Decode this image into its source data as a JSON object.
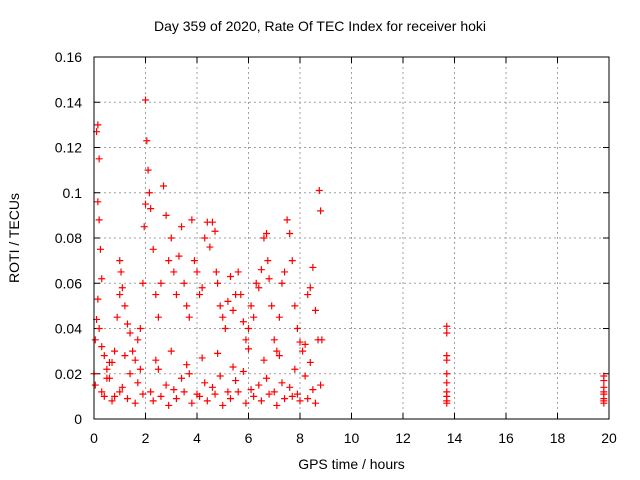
{
  "chart_data": {
    "type": "scatter",
    "title": "Day 359 of 2020, Rate Of TEC Index for receiver hoki",
    "xlabel": "GPS time / hours",
    "ylabel": "ROTI / TECUs",
    "xlim": [
      0,
      20
    ],
    "ylim": [
      0,
      0.16
    ],
    "xticks": [
      0,
      2,
      4,
      6,
      8,
      10,
      12,
      14,
      16,
      18,
      20
    ],
    "yticks": [
      0,
      0.02,
      0.04,
      0.06,
      0.08,
      0.1,
      0.12,
      0.14,
      0.16
    ],
    "ytick_labels": [
      "0",
      "0.02",
      "0.04",
      "0.06",
      "0.08",
      "0.1",
      "0.12",
      "0.14",
      "0.16"
    ],
    "grid": true,
    "marker": "+",
    "colors": {
      "series": "#ff0000",
      "grid": "#a0a0a0"
    },
    "series": [
      {
        "name": "",
        "x": [
          0.0,
          0.05,
          0.1,
          0.15,
          0.2,
          0.1,
          0.15,
          0.2,
          0.25,
          0.3,
          0.15,
          0.2,
          0.3,
          0.4,
          0.5,
          0.6,
          0.7,
          0.8,
          0.9,
          1.0,
          1.0,
          1.05,
          1.1,
          1.2,
          1.3,
          1.4,
          1.5,
          1.6,
          1.7,
          1.8,
          1.9,
          1.95,
          2.0,
          2.0,
          2.05,
          2.1,
          2.15,
          2.2,
          2.3,
          2.4,
          2.5,
          2.6,
          2.7,
          2.8,
          2.9,
          3.0,
          3.1,
          3.2,
          3.3,
          3.4,
          3.5,
          3.6,
          3.7,
          3.8,
          3.9,
          4.0,
          4.1,
          4.2,
          4.3,
          4.4,
          4.5,
          4.6,
          4.7,
          4.75,
          4.8,
          4.9,
          5.0,
          5.1,
          5.2,
          5.3,
          5.4,
          5.5,
          5.6,
          5.7,
          5.8,
          5.9,
          6.0,
          6.1,
          6.2,
          6.3,
          6.4,
          6.5,
          6.6,
          6.7,
          6.75,
          6.8,
          6.9,
          7.0,
          7.1,
          7.2,
          7.3,
          7.4,
          7.5,
          7.6,
          7.7,
          7.8,
          7.9,
          8.0,
          8.1,
          8.2,
          8.3,
          8.4,
          8.5,
          8.6,
          8.7,
          8.75,
          8.8,
          8.85,
          0.05,
          0.3,
          0.5,
          0.8,
          1.1,
          1.4,
          1.7,
          2.2,
          2.5,
          2.8,
          3.1,
          3.4,
          3.7,
          4.0,
          4.3,
          4.6,
          4.9,
          5.2,
          5.5,
          5.8,
          6.1,
          6.4,
          6.7,
          7.0,
          7.3,
          7.6,
          7.9,
          8.2,
          8.5,
          8.8,
          0.4,
          0.7,
          1.0,
          1.3,
          1.6,
          1.9,
          2.3,
          2.6,
          2.9,
          3.2,
          3.5,
          3.8,
          4.1,
          4.4,
          4.7,
          5.0,
          5.3,
          5.6,
          5.9,
          6.2,
          6.5,
          6.8,
          7.1,
          7.4,
          7.7,
          8.0,
          8.3,
          8.6,
          0.6,
          1.2,
          1.8,
          2.4,
          3.0,
          3.6,
          4.2,
          4.8,
          5.4,
          6.0,
          6.6,
          7.2,
          7.8,
          8.4,
          13.7,
          13.7,
          13.7,
          13.7,
          13.7,
          13.7,
          13.7,
          13.7,
          13.7,
          13.7,
          19.8,
          19.8,
          19.8,
          19.8,
          19.8,
          19.8,
          19.8,
          19.8
        ],
        "y": [
          0.02,
          0.035,
          0.044,
          0.13,
          0.115,
          0.127,
          0.096,
          0.088,
          0.075,
          0.062,
          0.053,
          0.04,
          0.032,
          0.028,
          0.022,
          0.018,
          0.025,
          0.03,
          0.045,
          0.055,
          0.07,
          0.065,
          0.058,
          0.05,
          0.042,
          0.038,
          0.03,
          0.026,
          0.035,
          0.04,
          0.06,
          0.085,
          0.095,
          0.141,
          0.123,
          0.11,
          0.1,
          0.093,
          0.075,
          0.055,
          0.045,
          0.06,
          0.103,
          0.09,
          0.07,
          0.08,
          0.065,
          0.055,
          0.072,
          0.085,
          0.06,
          0.05,
          0.045,
          0.088,
          0.07,
          0.065,
          0.055,
          0.058,
          0.08,
          0.087,
          0.076,
          0.087,
          0.083,
          0.065,
          0.06,
          0.05,
          0.045,
          0.04,
          0.052,
          0.063,
          0.048,
          0.055,
          0.065,
          0.055,
          0.043,
          0.035,
          0.04,
          0.05,
          0.045,
          0.06,
          0.058,
          0.066,
          0.08,
          0.082,
          0.07,
          0.062,
          0.05,
          0.035,
          0.03,
          0.045,
          0.06,
          0.065,
          0.088,
          0.082,
          0.07,
          0.05,
          0.04,
          0.034,
          0.03,
          0.033,
          0.055,
          0.058,
          0.067,
          0.048,
          0.035,
          0.101,
          0.092,
          0.035,
          0.015,
          0.012,
          0.018,
          0.01,
          0.014,
          0.02,
          0.016,
          0.012,
          0.022,
          0.015,
          0.013,
          0.018,
          0.02,
          0.011,
          0.016,
          0.014,
          0.019,
          0.012,
          0.017,
          0.021,
          0.013,
          0.015,
          0.018,
          0.012,
          0.016,
          0.014,
          0.011,
          0.019,
          0.013,
          0.015,
          0.01,
          0.008,
          0.012,
          0.009,
          0.007,
          0.011,
          0.008,
          0.01,
          0.006,
          0.009,
          0.012,
          0.007,
          0.01,
          0.008,
          0.011,
          0.006,
          0.009,
          0.012,
          0.007,
          0.01,
          0.008,
          0.011,
          0.006,
          0.009,
          0.01,
          0.008,
          0.009,
          0.007,
          0.025,
          0.028,
          0.022,
          0.026,
          0.03,
          0.024,
          0.027,
          0.029,
          0.023,
          0.031,
          0.026,
          0.028,
          0.022,
          0.025,
          0.041,
          0.038,
          0.028,
          0.026,
          0.02,
          0.016,
          0.012,
          0.01,
          0.008,
          0.007,
          0.019,
          0.017,
          0.014,
          0.012,
          0.011,
          0.009,
          0.008,
          0.007
        ]
      }
    ]
  }
}
